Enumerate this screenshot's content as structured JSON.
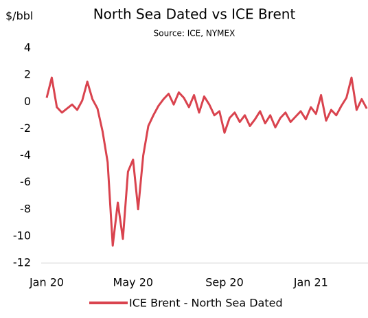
{
  "chart_data": {
    "type": "line",
    "title": "North Sea Dated vs ICE Brent",
    "subtitle": "Source: ICE, NYMEX",
    "y_label": "$/bbl",
    "categories": [
      "Jan 20",
      null,
      null,
      null,
      null,
      null,
      null,
      null,
      null,
      null,
      null,
      null,
      null,
      null,
      null,
      null,
      null,
      "May 20",
      null,
      null,
      null,
      null,
      null,
      null,
      null,
      null,
      null,
      null,
      null,
      null,
      null,
      null,
      null,
      null,
      null,
      "Sep 20",
      null,
      null,
      null,
      null,
      null,
      null,
      null,
      null,
      null,
      null,
      null,
      null,
      null,
      null,
      null,
      null,
      "Jan 21",
      null,
      null,
      null,
      null,
      null,
      null,
      null,
      null,
      null,
      null,
      null
    ],
    "series": [
      {
        "name": "ICE Brent - North Sea Dated",
        "color": "#d9434e",
        "values": [
          0.3,
          1.8,
          -0.4,
          -0.8,
          -0.5,
          -0.2,
          -0.6,
          0.1,
          1.5,
          0.2,
          -0.5,
          -2.2,
          -4.5,
          -10.7,
          -7.5,
          -10.2,
          -5.2,
          -4.3,
          -8,
          -4,
          -1.8,
          -1,
          -0.3,
          0.2,
          0.6,
          -0.2,
          0.7,
          0.3,
          -0.4,
          0.5,
          -0.8,
          0.4,
          -0.2,
          -1,
          -0.7,
          -2.3,
          -1.2,
          -0.8,
          -1.5,
          -1,
          -1.8,
          -1.3,
          -0.7,
          -1.6,
          -1,
          -1.9,
          -1.2,
          -0.8,
          -1.5,
          -1.1,
          -0.7,
          -1.3,
          -0.4,
          -0.9,
          0.5,
          -1.4,
          -0.6,
          -1,
          -0.3,
          0.3,
          1.8,
          -0.6,
          0.2,
          -0.5
        ]
      }
    ],
    "ylim": [
      -12,
      4
    ],
    "yticks": [
      -12,
      -10,
      -8,
      -6,
      -4,
      -2,
      0,
      2,
      4
    ],
    "legend": "bottom"
  }
}
